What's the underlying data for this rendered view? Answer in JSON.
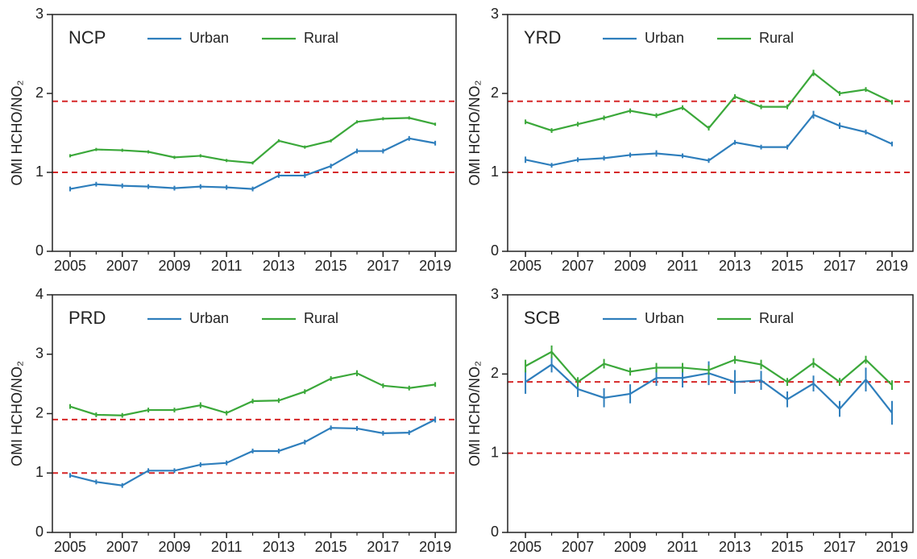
{
  "chart_data": [
    {
      "type": "line",
      "title": "NCP",
      "y_label": "OMI HCHO/NO₂",
      "x": [
        2005,
        2006,
        2007,
        2008,
        2009,
        2010,
        2011,
        2012,
        2013,
        2014,
        2015,
        2016,
        2017,
        2018,
        2019
      ],
      "series": [
        {
          "name": "Urban",
          "color": "#2e7ebc",
          "values": [
            0.79,
            0.85,
            0.83,
            0.82,
            0.8,
            0.82,
            0.81,
            0.79,
            0.96,
            0.96,
            1.08,
            1.27,
            1.27,
            1.43,
            1.37
          ],
          "errors": [
            0.03,
            0.03,
            0.03,
            0.03,
            0.03,
            0.03,
            0.03,
            0.03,
            0.03,
            0.03,
            0.03,
            0.03,
            0.03,
            0.03,
            0.03
          ]
        },
        {
          "name": "Rural",
          "color": "#3ba83a",
          "values": [
            1.21,
            1.29,
            1.28,
            1.26,
            1.19,
            1.21,
            1.15,
            1.12,
            1.4,
            1.32,
            1.4,
            1.64,
            1.68,
            1.69,
            1.61
          ],
          "errors": [
            0.02,
            0.02,
            0.02,
            0.02,
            0.02,
            0.02,
            0.02,
            0.02,
            0.02,
            0.02,
            0.02,
            0.02,
            0.02,
            0.02,
            0.02
          ]
        }
      ],
      "xlim": [
        2004.32,
        2019.8
      ],
      "xticks": [
        2005,
        2007,
        2009,
        2011,
        2013,
        2015,
        2017,
        2019
      ],
      "ylim": [
        0,
        3
      ],
      "yticks": [
        0,
        1,
        2,
        3
      ],
      "hlines": [
        1.9,
        1.0
      ],
      "hline_color": "#d62728"
    },
    {
      "type": "line",
      "title": "YRD",
      "y_label": "OMI HCHO/NO₂",
      "x": [
        2005,
        2006,
        2007,
        2008,
        2009,
        2010,
        2011,
        2012,
        2013,
        2014,
        2015,
        2016,
        2017,
        2018,
        2019
      ],
      "series": [
        {
          "name": "Urban",
          "color": "#2e7ebc",
          "values": [
            1.16,
            1.09,
            1.16,
            1.18,
            1.22,
            1.24,
            1.21,
            1.15,
            1.38,
            1.32,
            1.32,
            1.73,
            1.59,
            1.51,
            1.36
          ],
          "errors": [
            0.04,
            0.03,
            0.03,
            0.03,
            0.03,
            0.04,
            0.03,
            0.03,
            0.03,
            0.03,
            0.03,
            0.05,
            0.04,
            0.03,
            0.03
          ]
        },
        {
          "name": "Rural",
          "color": "#3ba83a",
          "values": [
            1.64,
            1.53,
            1.61,
            1.69,
            1.78,
            1.72,
            1.82,
            1.56,
            1.96,
            1.83,
            1.83,
            2.26,
            2.0,
            2.05,
            1.89
          ],
          "errors": [
            0.03,
            0.03,
            0.03,
            0.03,
            0.03,
            0.03,
            0.03,
            0.03,
            0.03,
            0.03,
            0.03,
            0.04,
            0.03,
            0.03,
            0.03
          ]
        }
      ],
      "xlim": [
        2004.32,
        2019.8
      ],
      "xticks": [
        2005,
        2007,
        2009,
        2011,
        2013,
        2015,
        2017,
        2019
      ],
      "ylim": [
        0,
        3
      ],
      "yticks": [
        0,
        1,
        2,
        3
      ],
      "hlines": [
        1.9,
        1.0
      ],
      "hline_color": "#d62728"
    },
    {
      "type": "line",
      "title": "PRD",
      "y_label": "OMI HCHO/NO₂",
      "x": [
        2005,
        2006,
        2007,
        2008,
        2009,
        2010,
        2011,
        2012,
        2013,
        2014,
        2015,
        2016,
        2017,
        2018,
        2019
      ],
      "series": [
        {
          "name": "Urban",
          "color": "#2e7ebc",
          "values": [
            0.96,
            0.85,
            0.79,
            1.04,
            1.04,
            1.14,
            1.17,
            1.37,
            1.37,
            1.52,
            1.76,
            1.75,
            1.67,
            1.68,
            1.9
          ],
          "errors": [
            0.04,
            0.04,
            0.04,
            0.04,
            0.04,
            0.04,
            0.04,
            0.04,
            0.04,
            0.04,
            0.04,
            0.04,
            0.04,
            0.04,
            0.05
          ]
        },
        {
          "name": "Rural",
          "color": "#3ba83a",
          "values": [
            2.12,
            1.98,
            1.97,
            2.06,
            2.06,
            2.14,
            2.01,
            2.21,
            2.22,
            2.37,
            2.59,
            2.68,
            2.47,
            2.43,
            2.49
          ],
          "errors": [
            0.04,
            0.04,
            0.04,
            0.04,
            0.04,
            0.05,
            0.04,
            0.04,
            0.04,
            0.04,
            0.04,
            0.05,
            0.04,
            0.04,
            0.04
          ]
        }
      ],
      "xlim": [
        2004.32,
        2019.8
      ],
      "xticks": [
        2005,
        2007,
        2009,
        2011,
        2013,
        2015,
        2017,
        2019
      ],
      "ylim": [
        0,
        4
      ],
      "yticks": [
        0,
        1,
        2,
        3,
        4
      ],
      "hlines": [
        1.9,
        1.0
      ],
      "hline_color": "#d62728"
    },
    {
      "type": "line",
      "title": "SCB",
      "y_label": "OMI HCHO/NO₂",
      "x": [
        2005,
        2006,
        2007,
        2008,
        2009,
        2010,
        2011,
        2012,
        2013,
        2014,
        2015,
        2016,
        2017,
        2018,
        2019
      ],
      "series": [
        {
          "name": "Urban",
          "color": "#2e7ebc",
          "values": [
            1.9,
            2.12,
            1.81,
            1.7,
            1.75,
            1.95,
            1.95,
            2.01,
            1.9,
            1.92,
            1.68,
            1.88,
            1.56,
            1.93,
            1.51
          ],
          "errors": [
            0.15,
            0.1,
            0.1,
            0.12,
            0.12,
            0.1,
            0.12,
            0.15,
            0.15,
            0.12,
            0.1,
            0.1,
            0.1,
            0.15,
            0.15
          ]
        },
        {
          "name": "Rural",
          "color": "#3ba83a",
          "values": [
            2.1,
            2.28,
            1.9,
            2.13,
            2.03,
            2.08,
            2.08,
            2.05,
            2.18,
            2.12,
            1.9,
            2.14,
            1.9,
            2.18,
            1.86
          ],
          "errors": [
            0.08,
            0.08,
            0.06,
            0.06,
            0.05,
            0.06,
            0.06,
            0.06,
            0.05,
            0.06,
            0.05,
            0.06,
            0.05,
            0.05,
            0.06
          ]
        }
      ],
      "xlim": [
        2004.32,
        2019.8
      ],
      "xticks": [
        2005,
        2007,
        2009,
        2011,
        2013,
        2015,
        2017,
        2019
      ],
      "ylim": [
        0,
        3
      ],
      "yticks": [
        0,
        1,
        2,
        3
      ],
      "hlines": [
        1.9,
        1.0
      ],
      "hline_color": "#d62728"
    }
  ]
}
